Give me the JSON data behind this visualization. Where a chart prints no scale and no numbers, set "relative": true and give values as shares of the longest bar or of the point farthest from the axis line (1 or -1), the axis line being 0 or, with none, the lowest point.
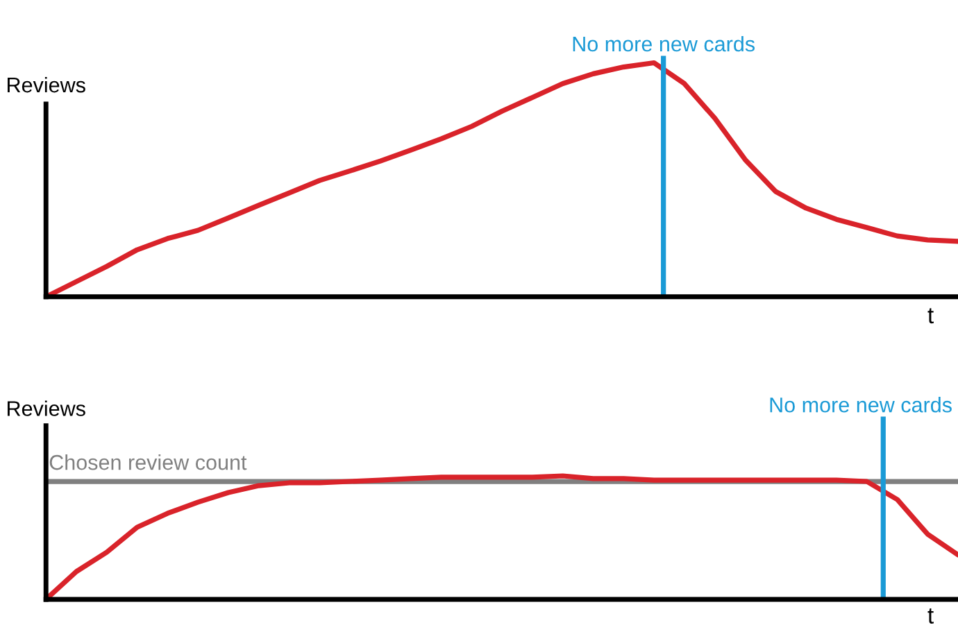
{
  "chart_data": [
    {
      "type": "line",
      "relative": true,
      "ylabel": "Reviews",
      "xlabel": "t",
      "categories": [
        null,
        null,
        null,
        null,
        null,
        null,
        null,
        null,
        null,
        null,
        null,
        null,
        null,
        null,
        null,
        null,
        null,
        null,
        null,
        null,
        null,
        null,
        null,
        null,
        null,
        null,
        null,
        null,
        null,
        null,
        null
      ],
      "series": [
        {
          "color": "#d9232a",
          "values": [
            0,
            0.065,
            0.13,
            0.201,
            0.249,
            0.284,
            0.337,
            0.391,
            0.444,
            0.497,
            0.538,
            0.58,
            0.627,
            0.675,
            0.728,
            0.793,
            0.852,
            0.911,
            0.953,
            0.982,
            1.0,
            0.911,
            0.763,
            0.586,
            0.45,
            0.379,
            0.331,
            0.296,
            0.26,
            0.243,
            0.237
          ]
        }
      ],
      "annotations": [
        "No more new cards"
      ]
    },
    {
      "type": "line",
      "relative": true,
      "ylabel": "Reviews",
      "xlabel": "t",
      "categories": [
        null,
        null,
        null,
        null,
        null,
        null,
        null,
        null,
        null,
        null,
        null,
        null,
        null,
        null,
        null,
        null,
        null,
        null,
        null,
        null,
        null,
        null,
        null,
        null,
        null,
        null,
        null,
        null,
        null,
        null,
        null
      ],
      "series": [
        {
          "color": "#d9232a",
          "values": [
            0,
            0.225,
            0.382,
            0.584,
            0.697,
            0.787,
            0.865,
            0.921,
            0.944,
            0.944,
            0.955,
            0.966,
            0.978,
            0.989,
            0.989,
            0.989,
            0.989,
            1.0,
            0.978,
            0.978,
            0.966,
            0.966,
            0.966,
            0.966,
            0.966,
            0.966,
            0.966,
            0.955,
            0.809,
            0.528,
            0.36
          ]
        }
      ],
      "annotations": [
        "No more new cards"
      ],
      "ref_lines": [
        {
          "axis": "y",
          "value": 0.955,
          "label": "Chosen review count",
          "color": "#808080"
        }
      ]
    }
  ]
}
